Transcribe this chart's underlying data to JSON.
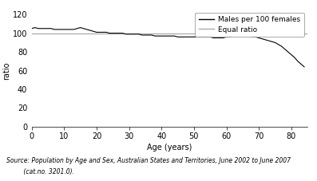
{
  "ylabel": "ratio",
  "xlabel": "Age (years)",
  "ylim": [
    0,
    120
  ],
  "xlim": [
    0,
    85
  ],
  "yticks": [
    0,
    20,
    40,
    60,
    80,
    100,
    120
  ],
  "xticks": [
    0,
    10,
    20,
    30,
    40,
    50,
    60,
    70,
    80
  ],
  "equal_ratio": 100,
  "line_color": "#000000",
  "equal_color": "#aaaaaa",
  "source_line1": "Source: Population by Age and Sex, Australian States and Territories, June 2002 to June 2007",
  "source_line2": "         (cat.no. 3201.0).",
  "legend_males": "Males per 100 females",
  "legend_equal": "Equal ratio",
  "ages": [
    0,
    1,
    2,
    3,
    4,
    5,
    6,
    7,
    8,
    9,
    10,
    11,
    12,
    13,
    14,
    15,
    16,
    17,
    18,
    19,
    20,
    21,
    22,
    23,
    24,
    25,
    26,
    27,
    28,
    29,
    30,
    31,
    32,
    33,
    34,
    35,
    36,
    37,
    38,
    39,
    40,
    41,
    42,
    43,
    44,
    45,
    46,
    47,
    48,
    49,
    50,
    51,
    52,
    53,
    54,
    55,
    56,
    57,
    58,
    59,
    60,
    61,
    62,
    63,
    64,
    65,
    66,
    67,
    68,
    69,
    70,
    71,
    72,
    73,
    74,
    75,
    76,
    77,
    78,
    79,
    80,
    81,
    82,
    83,
    84
  ],
  "ratios": [
    105,
    106,
    105,
    105,
    105,
    105,
    105,
    104,
    104,
    104,
    104,
    104,
    104,
    104,
    105,
    106,
    105,
    104,
    103,
    102,
    101,
    101,
    101,
    101,
    100,
    100,
    100,
    100,
    100,
    99,
    99,
    99,
    99,
    99,
    98,
    98,
    98,
    98,
    97,
    97,
    97,
    97,
    97,
    97,
    97,
    96,
    96,
    96,
    96,
    96,
    96,
    96,
    96,
    96,
    96,
    96,
    95,
    95,
    95,
    95,
    96,
    96,
    97,
    97,
    97,
    97,
    97,
    97,
    96,
    96,
    95,
    94,
    93,
    92,
    91,
    90,
    88,
    86,
    83,
    80,
    77,
    74,
    70,
    67,
    64
  ]
}
